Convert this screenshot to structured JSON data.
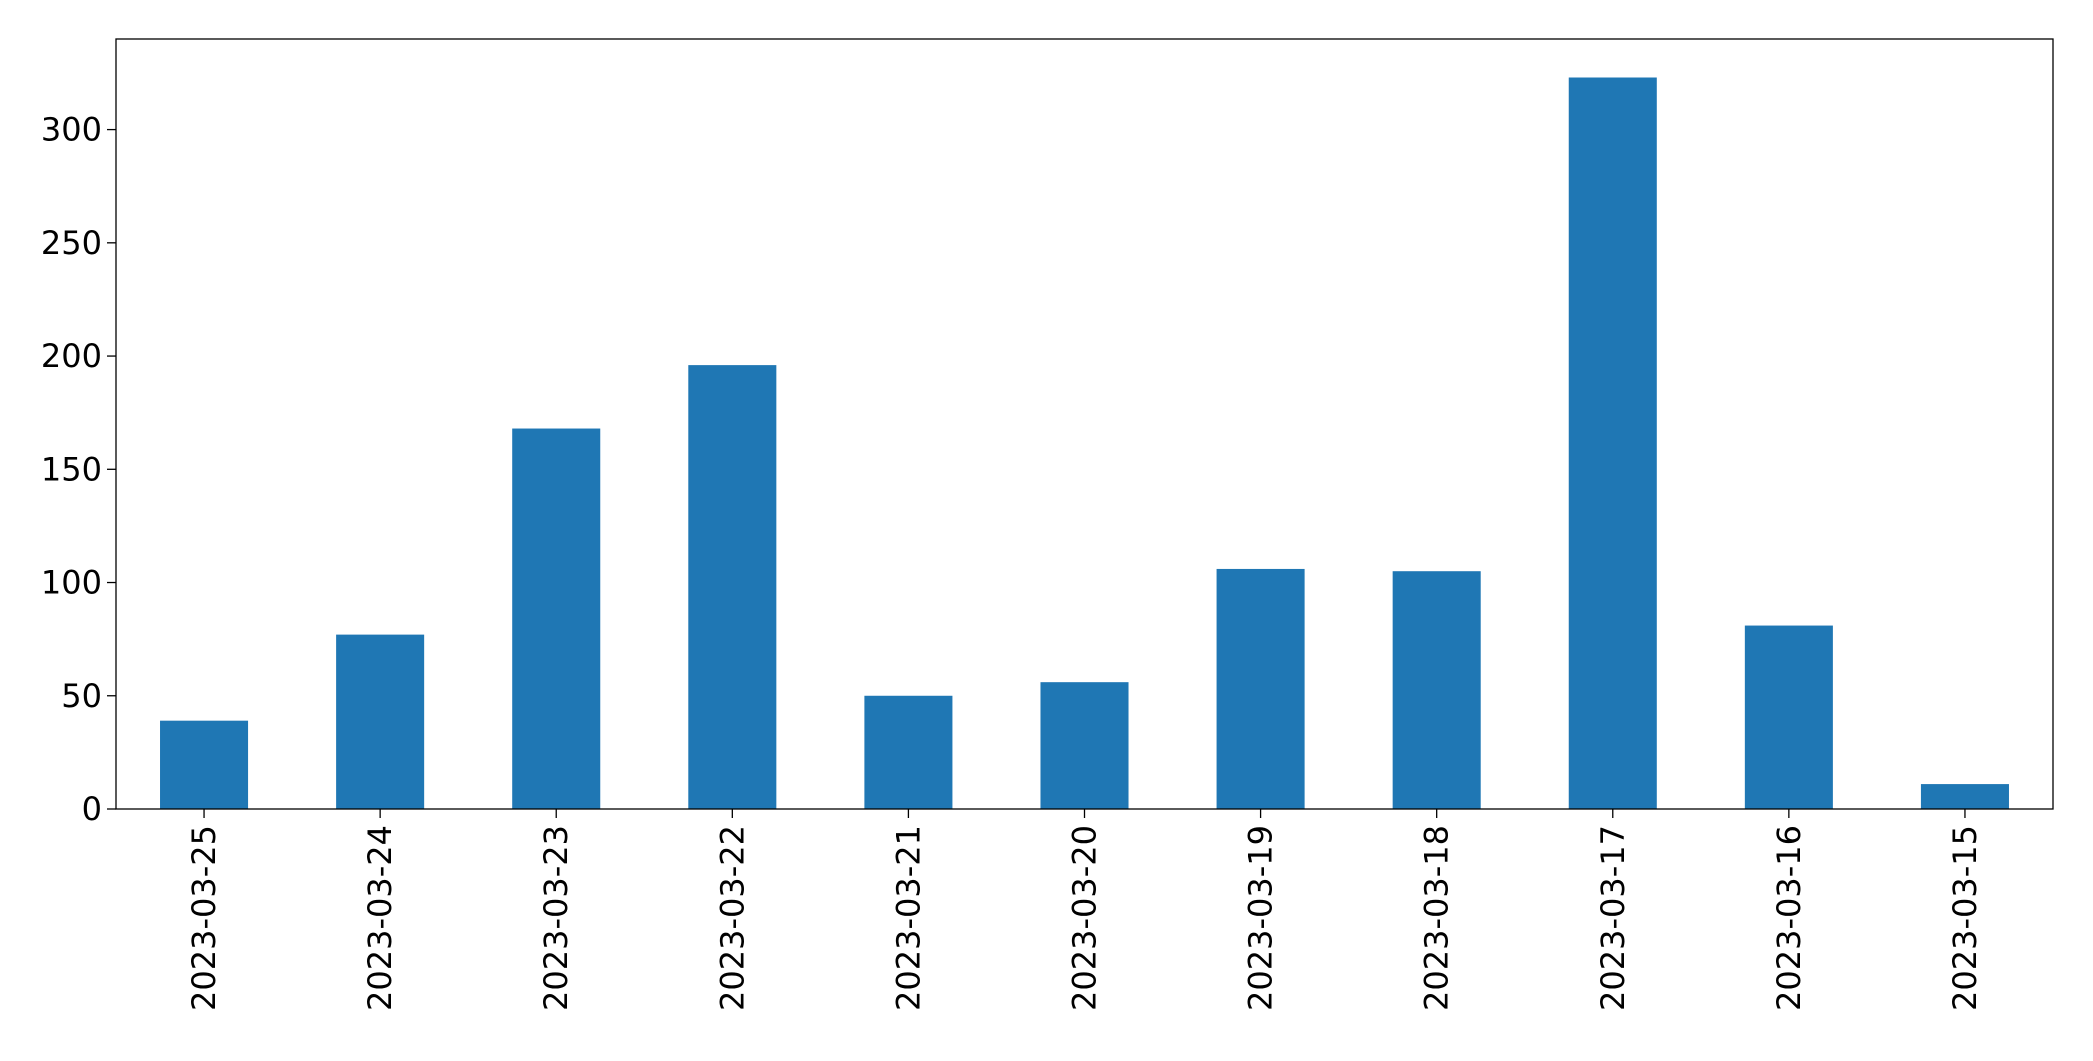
{
  "chart_data": {
    "type": "bar",
    "categories": [
      "2023-03-25",
      "2023-03-24",
      "2023-03-23",
      "2023-03-22",
      "2023-03-21",
      "2023-03-20",
      "2023-03-19",
      "2023-03-18",
      "2023-03-17",
      "2023-03-16",
      "2023-03-15"
    ],
    "values": [
      39,
      77,
      168,
      196,
      50,
      56,
      106,
      105,
      323,
      81,
      11
    ],
    "color": "#1f77b4",
    "ylim": [
      0,
      340
    ],
    "yticks": [
      0,
      50,
      100,
      150,
      200,
      250,
      300
    ],
    "grid": false
  }
}
